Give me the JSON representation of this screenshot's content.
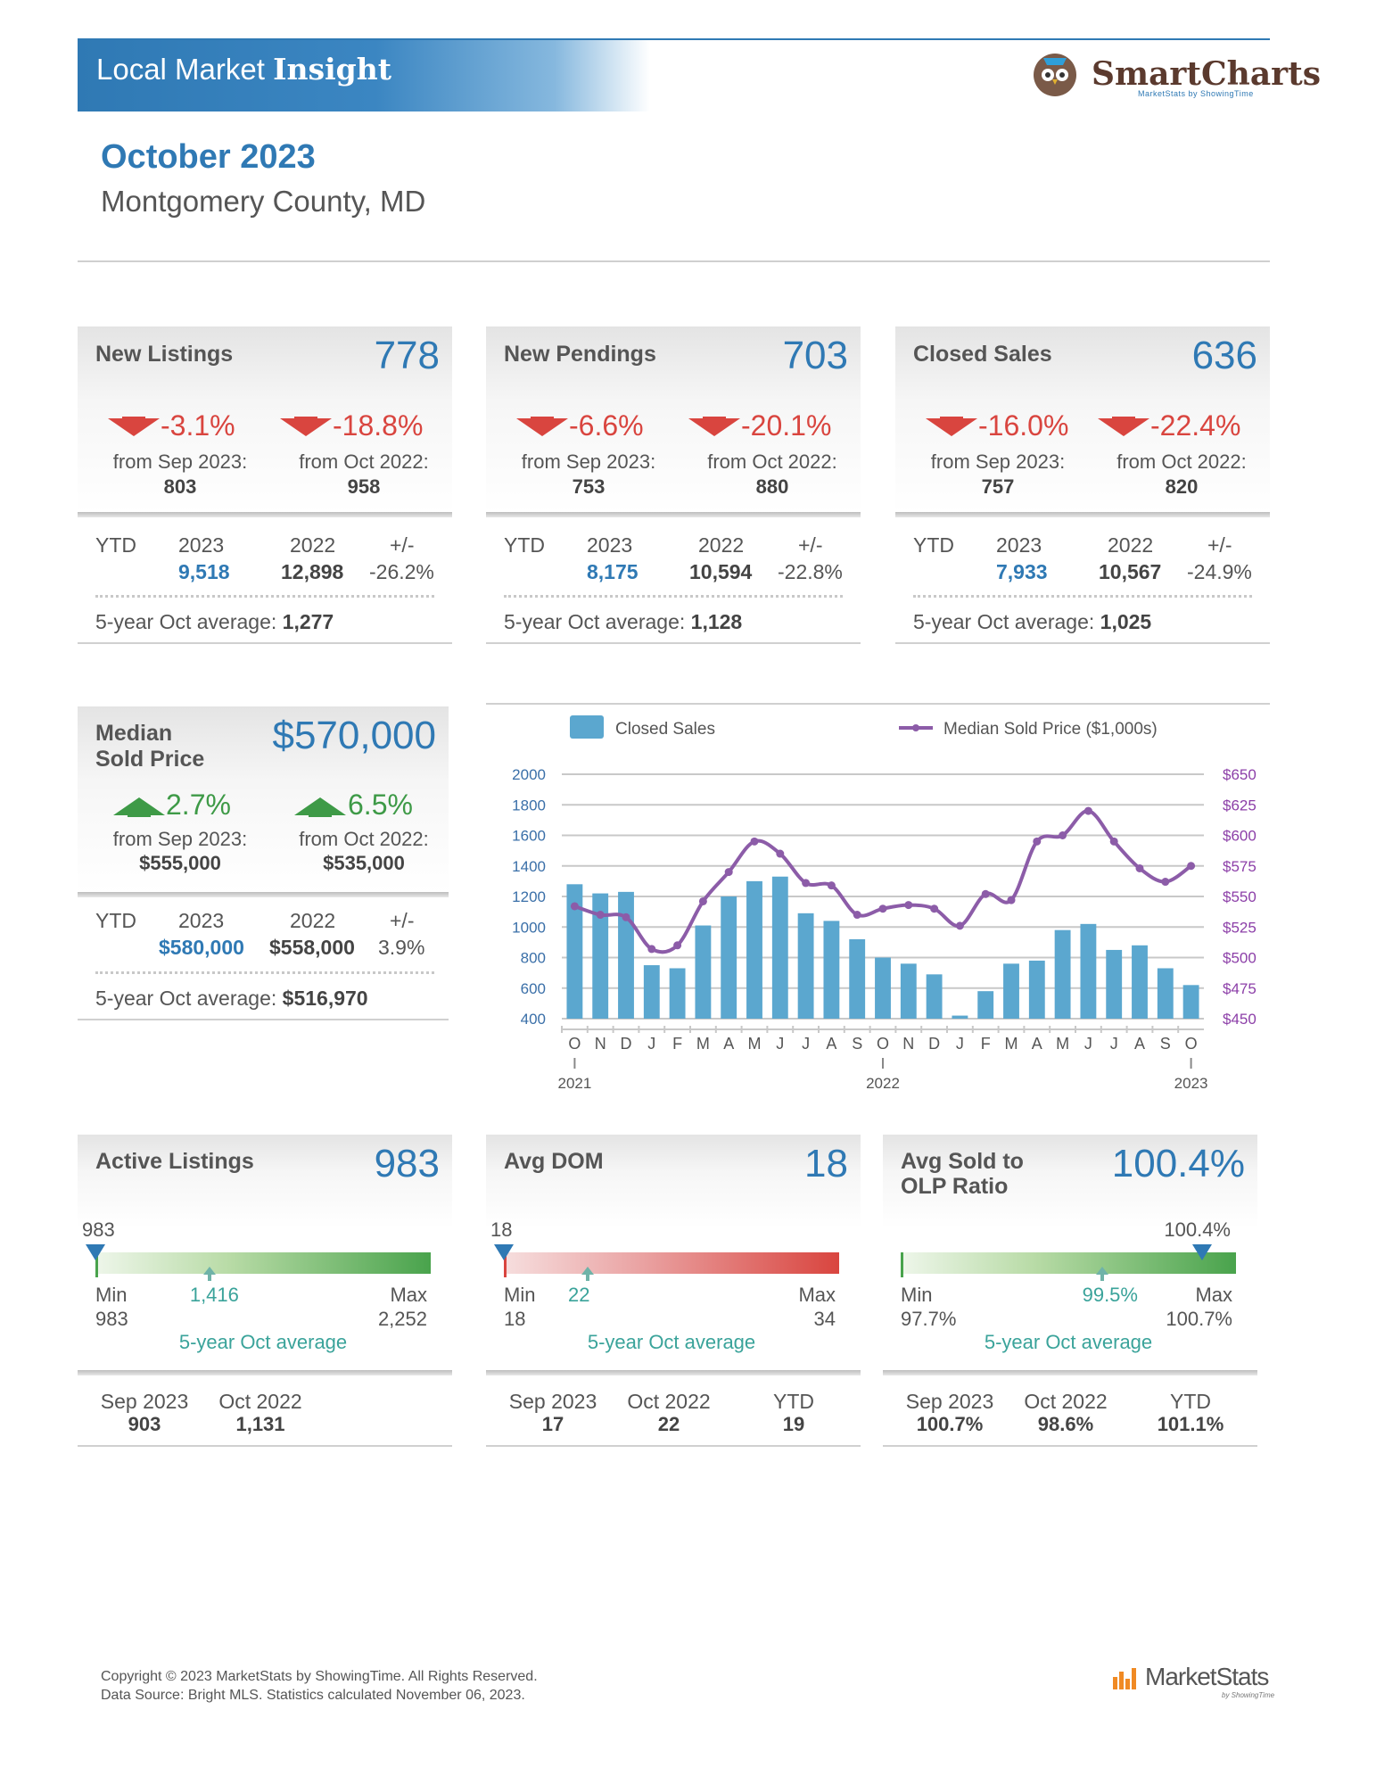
{
  "header": {
    "title_plain": "Local Market",
    "title_bold": "Insight",
    "brand": "SmartCharts",
    "brand_sub": "MarketStats by ShowingTime"
  },
  "report": {
    "month": "October 2023",
    "county": "Montgomery County, MD"
  },
  "cards": [
    {
      "title": "New Listings",
      "value": "778",
      "change1": "-3.1%",
      "from1": "from Sep 2023:",
      "prev1": "803",
      "change2": "-18.8%",
      "from2": "from Oct 2022:",
      "prev2": "958",
      "ytd_label": "YTD",
      "year1": "2023",
      "year2": "2022",
      "pm": "+/-",
      "ytd1": "9,518",
      "ytd2": "12,898",
      "ytd_pct": "-26.2%",
      "avg_label": "5-year Oct average:",
      "avg": "1,277"
    },
    {
      "title": "New Pendings",
      "value": "703",
      "change1": "-6.6%",
      "from1": "from Sep 2023:",
      "prev1": "753",
      "change2": "-20.1%",
      "from2": "from Oct 2022:",
      "prev2": "880",
      "ytd_label": "YTD",
      "year1": "2023",
      "year2": "2022",
      "pm": "+/-",
      "ytd1": "8,175",
      "ytd2": "10,594",
      "ytd_pct": "-22.8%",
      "avg_label": "5-year Oct average:",
      "avg": "1,128"
    },
    {
      "title": "Closed Sales",
      "value": "636",
      "change1": "-16.0%",
      "from1": "from Sep 2023:",
      "prev1": "757",
      "change2": "-22.4%",
      "from2": "from Oct 2022:",
      "prev2": "820",
      "ytd_label": "YTD",
      "year1": "2023",
      "year2": "2022",
      "pm": "+/-",
      "ytd1": "7,933",
      "ytd2": "10,567",
      "ytd_pct": "-24.9%",
      "avg_label": "5-year Oct average:",
      "avg": "1,025"
    }
  ],
  "median": {
    "title1": "Median",
    "title2": "Sold Price",
    "value": "$570,000",
    "change1": "2.7%",
    "from1": "from Sep 2023:",
    "prev1": "$555,000",
    "change2": "6.5%",
    "from2": "from Oct 2022:",
    "prev2": "$535,000",
    "ytd_label": "YTD",
    "year1": "2023",
    "year2": "2022",
    "pm": "+/-",
    "ytd1": "$580,000",
    "ytd2": "$558,000",
    "ytd_pct": "3.9%",
    "avg_label": "5-year Oct average:",
    "avg": "$516,970"
  },
  "gauges": [
    {
      "title1": "Active Listings",
      "title2": "",
      "value": "983",
      "marker_label": "983",
      "min_label": "Min",
      "min": "983",
      "max_label": "Max",
      "max": "2,252",
      "avg_value": "1,416",
      "avg_label": "5-year Oct average",
      "position": 0.0,
      "avg_position": 0.34,
      "foot": [
        {
          "label": "Sep 2023",
          "value": "903"
        },
        {
          "label": "Oct 2022",
          "value": "1,131"
        }
      ]
    },
    {
      "title1": "Avg DOM",
      "title2": "",
      "value": "18",
      "marker_label": "18",
      "min_label": "Min",
      "min": "18",
      "max_label": "Max",
      "max": "34",
      "avg_value": "22",
      "avg_label": "5-year Oct average",
      "position": 0.0,
      "avg_position": 0.25,
      "foot": [
        {
          "label": "Sep 2023",
          "value": "17"
        },
        {
          "label": "Oct 2022",
          "value": "22"
        },
        {
          "label": "YTD",
          "value": "19"
        }
      ]
    },
    {
      "title1": "Avg Sold to",
      "title2": "OLP Ratio",
      "value": "100.4%",
      "marker_label": "100.4%",
      "min_label": "Min",
      "min": "97.7%",
      "max_label": "Max",
      "max": "100.7%",
      "avg_value": "99.5%",
      "avg_label": "5-year Oct average",
      "position": 0.9,
      "avg_position": 0.6,
      "foot": [
        {
          "label": "Sep 2023",
          "value": "100.7%"
        },
        {
          "label": "Oct 2022",
          "value": "98.6%"
        },
        {
          "label": "YTD",
          "value": "101.1%"
        }
      ]
    }
  ],
  "chart_data": {
    "type": "bar",
    "legend": [
      "Closed Sales",
      "Median Sold Price ($1,000s)"
    ],
    "categories": [
      "O",
      "N",
      "D",
      "J",
      "F",
      "M",
      "A",
      "M",
      "J",
      "J",
      "A",
      "S",
      "O",
      "N",
      "D",
      "J",
      "F",
      "M",
      "A",
      "M",
      "J",
      "J",
      "A",
      "S",
      "O"
    ],
    "years": [
      {
        "label": "2021",
        "index": 0
      },
      {
        "label": "2022",
        "index": 12
      },
      {
        "label": "2023",
        "index": 24
      }
    ],
    "series": [
      {
        "name": "Closed Sales",
        "axis": "left",
        "values": [
          1280,
          1220,
          1230,
          750,
          730,
          1010,
          1200,
          1300,
          1330,
          1090,
          1040,
          920,
          800,
          760,
          690,
          420,
          580,
          760,
          780,
          980,
          1020,
          850,
          880,
          730,
          620
        ]
      },
      {
        "name": "Median Sold Price ($1,000s)",
        "axis": "right",
        "values": [
          542,
          535,
          533,
          507,
          510,
          546,
          570,
          595,
          585,
          561,
          559,
          535,
          540,
          543,
          540,
          526,
          552,
          547,
          595,
          600,
          620,
          595,
          573,
          562,
          575
        ]
      }
    ],
    "ylim_left": [
      400,
      2000
    ],
    "ylim_right": [
      450,
      650
    ],
    "yticks_left": [
      "2000",
      "1800",
      "1600",
      "1400",
      "1200",
      "1000",
      "800",
      "600",
      "400"
    ],
    "yticks_right": [
      "$650",
      "$625",
      "$600",
      "$575",
      "$550",
      "$525",
      "$500",
      "$475",
      "$450"
    ],
    "colors": {
      "bars": "#5ba7cf",
      "line": "#8c5ca8"
    }
  },
  "footer": {
    "line1": "Copyright © 2023 MarketStats by ShowingTime. All Rights Reserved.",
    "line2": "Data Source: Bright MLS. Statistics calculated November 06, 2023.",
    "logo": "MarketStats",
    "logo_sub": "by ShowingTime"
  }
}
